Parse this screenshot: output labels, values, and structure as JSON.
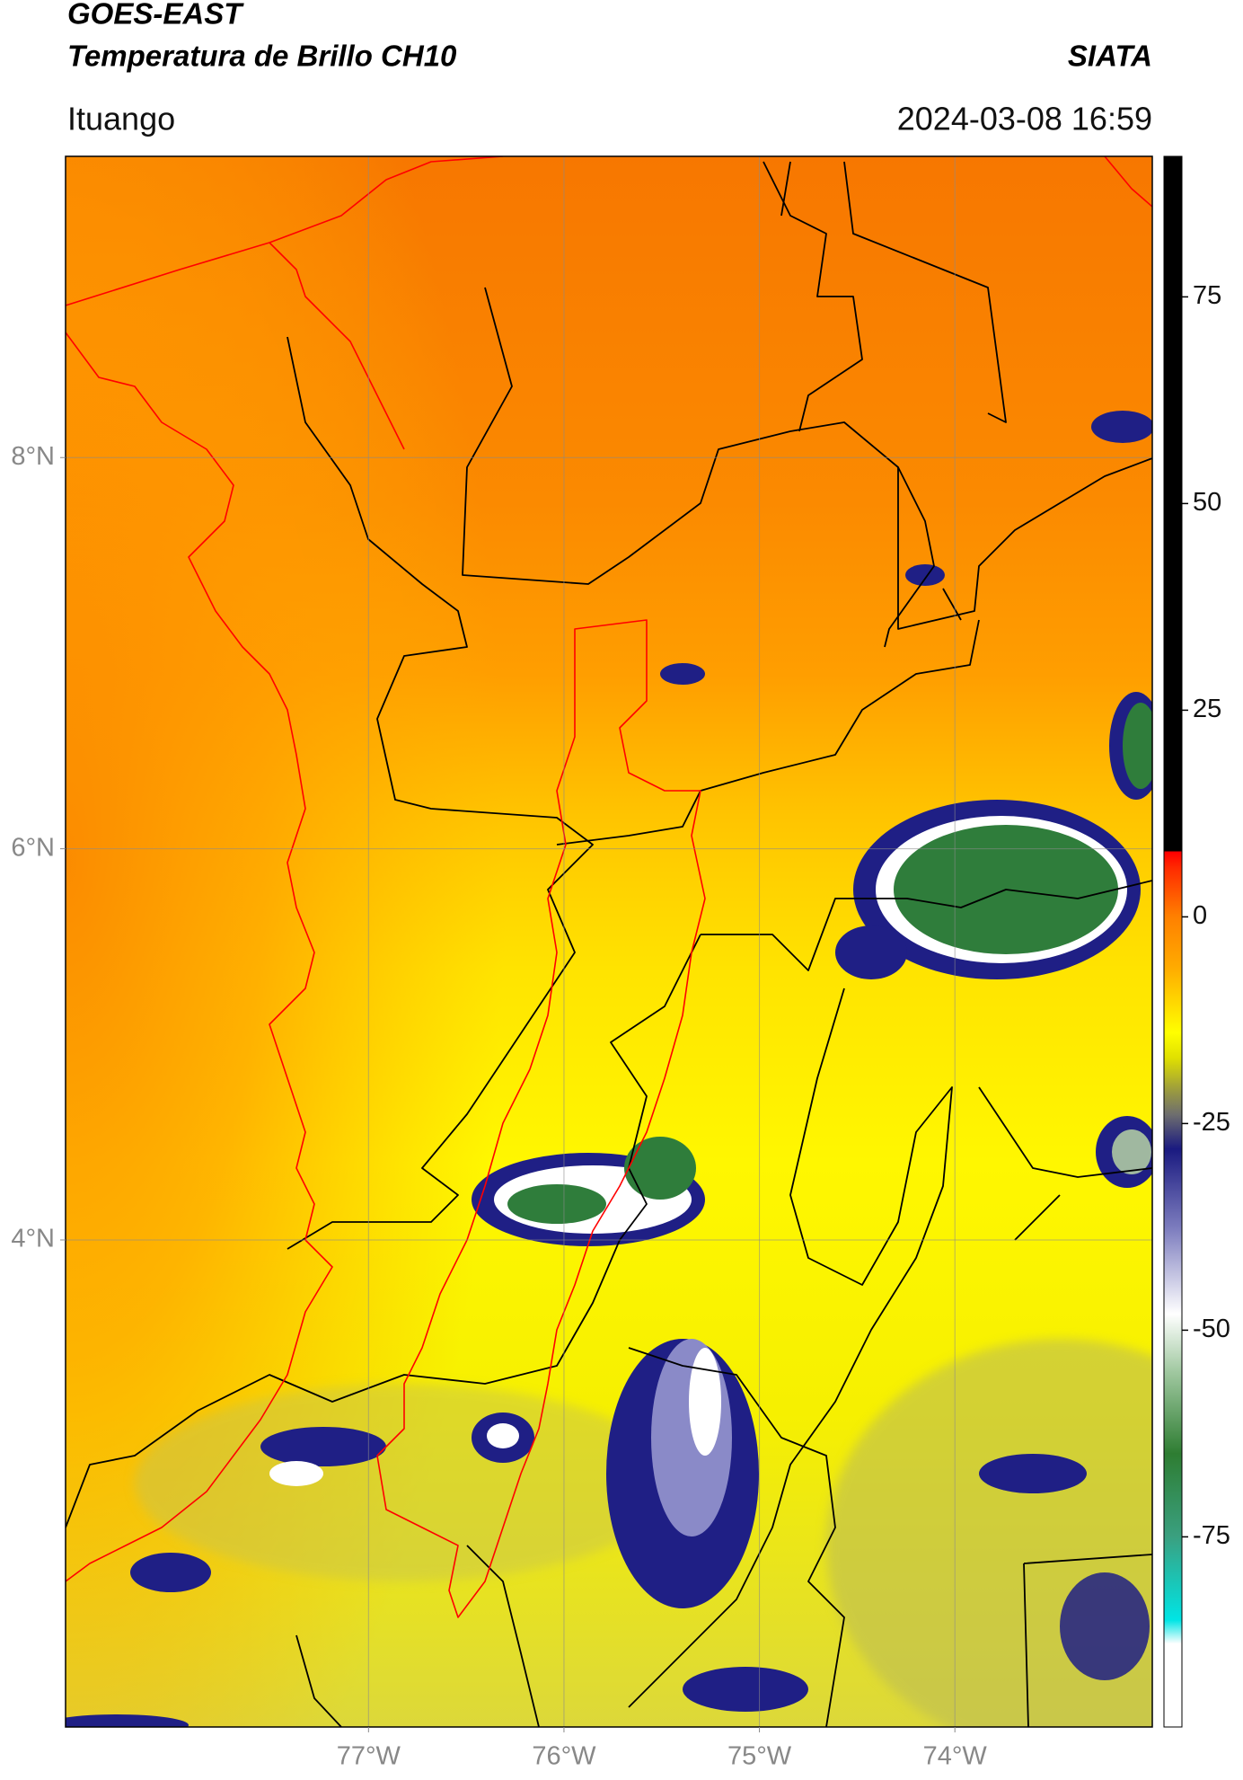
{
  "chart_data": {
    "type": "map",
    "title": "GOES-EAST",
    "subtitle": "Temperatura de Brillo CH10",
    "source": "SIATA",
    "location": "Ituango",
    "datetime": "2024-03-08 16:59",
    "xlim": [
      -78.55,
      -72.99
    ],
    "ylim": [
      1.51,
      9.54
    ],
    "xticks": [
      {
        "value": -77,
        "label": "77°W"
      },
      {
        "value": -76,
        "label": "76°W"
      },
      {
        "value": -75,
        "label": "75°W"
      },
      {
        "value": -74,
        "label": "74°W"
      }
    ],
    "yticks": [
      {
        "value": 4,
        "label": "4°N"
      },
      {
        "value": 6,
        "label": "6°N"
      },
      {
        "value": 8,
        "label": "8°N"
      }
    ],
    "grid": true,
    "colorbar": {
      "lim": [
        -98,
        92
      ],
      "ticks": [
        75,
        50,
        25,
        0,
        -25,
        -50,
        -75
      ]
    }
  }
}
